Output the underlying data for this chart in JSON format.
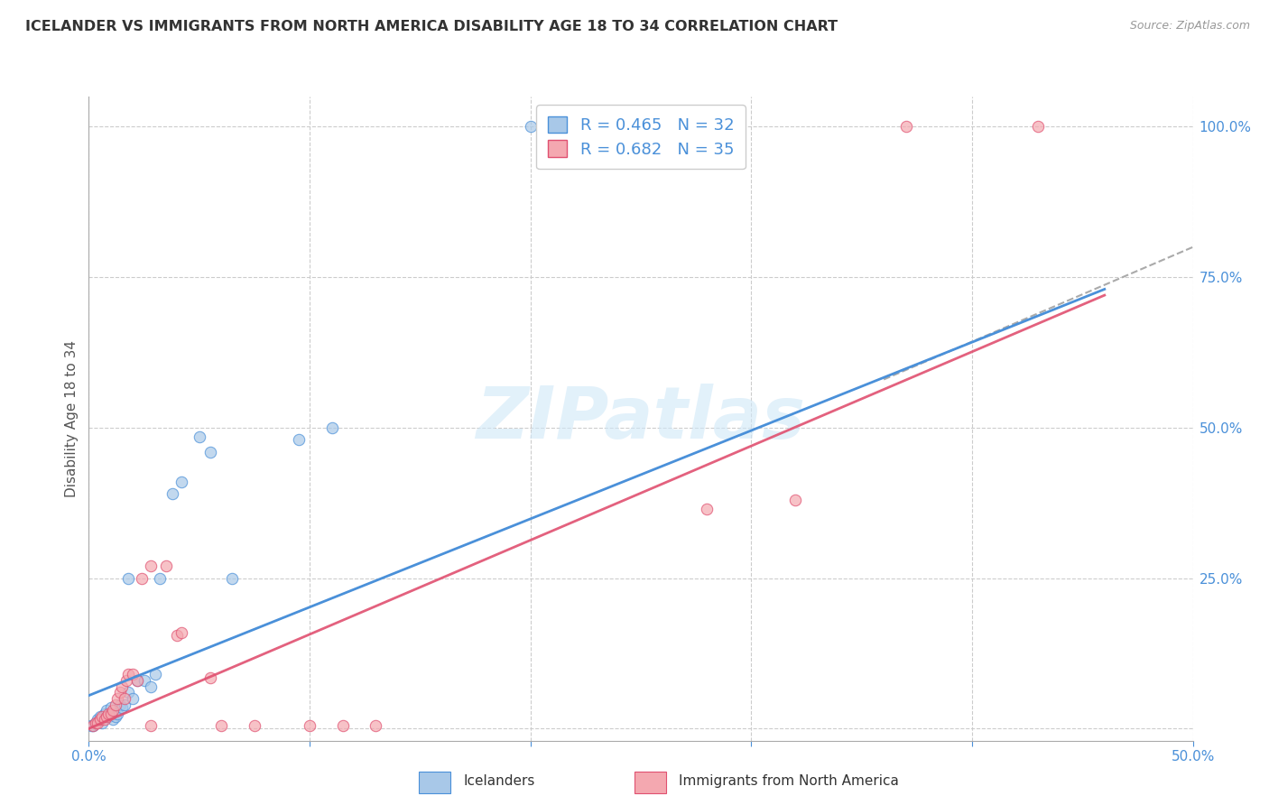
{
  "title": "ICELANDER VS IMMIGRANTS FROM NORTH AMERICA DISABILITY AGE 18 TO 34 CORRELATION CHART",
  "source": "Source: ZipAtlas.com",
  "ylabel": "Disability Age 18 to 34",
  "xlim": [
    0.0,
    0.5
  ],
  "ylim": [
    -0.02,
    1.05
  ],
  "xticks": [
    0.0,
    0.1,
    0.2,
    0.3,
    0.4,
    0.5
  ],
  "ytick_vals": [
    0.0,
    0.25,
    0.5,
    0.75,
    1.0
  ],
  "ytick_labels": [
    "",
    "25.0%",
    "50.0%",
    "75.0%",
    "100.0%"
  ],
  "watermark": "ZIPatlas",
  "legend_r1": "R = 0.465",
  "legend_n1": "N = 32",
  "legend_r2": "R = 0.682",
  "legend_n2": "N = 35",
  "blue_color": "#a8c8e8",
  "blue_edge": "#4a90d9",
  "pink_color": "#f4a8b0",
  "pink_edge": "#e05070",
  "blue_scatter": [
    [
      0.002,
      0.005
    ],
    [
      0.003,
      0.01
    ],
    [
      0.004,
      0.015
    ],
    [
      0.005,
      0.02
    ],
    [
      0.006,
      0.01
    ],
    [
      0.007,
      0.025
    ],
    [
      0.008,
      0.03
    ],
    [
      0.009,
      0.02
    ],
    [
      0.01,
      0.035
    ],
    [
      0.011,
      0.015
    ],
    [
      0.012,
      0.02
    ],
    [
      0.013,
      0.025
    ],
    [
      0.014,
      0.04
    ],
    [
      0.015,
      0.035
    ],
    [
      0.016,
      0.04
    ],
    [
      0.018,
      0.06
    ],
    [
      0.02,
      0.05
    ],
    [
      0.022,
      0.08
    ],
    [
      0.025,
      0.08
    ],
    [
      0.028,
      0.07
    ],
    [
      0.03,
      0.09
    ],
    [
      0.032,
      0.25
    ],
    [
      0.018,
      0.25
    ],
    [
      0.038,
      0.39
    ],
    [
      0.042,
      0.41
    ],
    [
      0.05,
      0.485
    ],
    [
      0.055,
      0.46
    ],
    [
      0.065,
      0.25
    ],
    [
      0.095,
      0.48
    ],
    [
      0.11,
      0.5
    ],
    [
      0.2,
      1.0
    ],
    [
      0.001,
      0.005
    ]
  ],
  "pink_scatter": [
    [
      0.002,
      0.005
    ],
    [
      0.003,
      0.01
    ],
    [
      0.004,
      0.01
    ],
    [
      0.005,
      0.015
    ],
    [
      0.006,
      0.02
    ],
    [
      0.007,
      0.015
    ],
    [
      0.008,
      0.02
    ],
    [
      0.009,
      0.025
    ],
    [
      0.01,
      0.025
    ],
    [
      0.011,
      0.03
    ],
    [
      0.012,
      0.04
    ],
    [
      0.013,
      0.05
    ],
    [
      0.014,
      0.06
    ],
    [
      0.015,
      0.07
    ],
    [
      0.016,
      0.05
    ],
    [
      0.017,
      0.08
    ],
    [
      0.018,
      0.09
    ],
    [
      0.02,
      0.09
    ],
    [
      0.022,
      0.08
    ],
    [
      0.024,
      0.25
    ],
    [
      0.028,
      0.27
    ],
    [
      0.035,
      0.27
    ],
    [
      0.04,
      0.155
    ],
    [
      0.042,
      0.16
    ],
    [
      0.055,
      0.085
    ],
    [
      0.06,
      0.005
    ],
    [
      0.028,
      0.005
    ],
    [
      0.075,
      0.005
    ],
    [
      0.1,
      0.005
    ],
    [
      0.115,
      0.005
    ],
    [
      0.13,
      0.005
    ],
    [
      0.28,
      0.365
    ],
    [
      0.37,
      1.0
    ],
    [
      0.43,
      1.0
    ],
    [
      0.32,
      0.38
    ]
  ],
  "blue_line_x": [
    0.0,
    0.46
  ],
  "blue_line_y": [
    0.055,
    0.73
  ],
  "pink_line_x": [
    0.0,
    0.46
  ],
  "pink_line_y": [
    0.0,
    0.72
  ],
  "dash_line_x": [
    0.36,
    0.5
  ],
  "dash_line_y": [
    0.58,
    0.8
  ],
  "grid_color": "#cccccc",
  "bg_color": "#ffffff",
  "title_color": "#333333",
  "axis_label_color": "#555555",
  "tick_color": "#4a90d9",
  "legend_text_color": "#4a90d9",
  "watermark_color": "#d0e8f8",
  "source_color": "#999999"
}
